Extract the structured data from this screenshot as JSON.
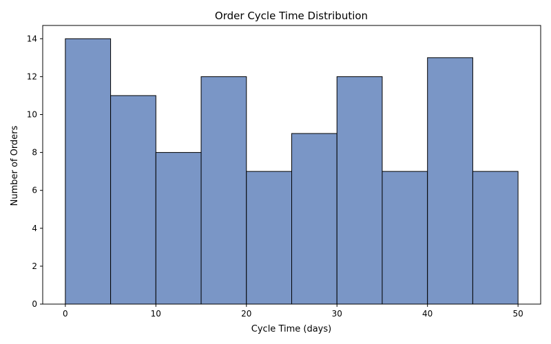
{
  "chart_data": {
    "type": "bar",
    "title": "Order Cycle Time Distribution",
    "xlabel": "Cycle Time (days)",
    "ylabel": "Number of Orders",
    "bins": [
      {
        "start": 0,
        "end": 5,
        "count": 14
      },
      {
        "start": 5,
        "end": 10,
        "count": 11
      },
      {
        "start": 10,
        "end": 15,
        "count": 8
      },
      {
        "start": 15,
        "end": 20,
        "count": 12
      },
      {
        "start": 20,
        "end": 25,
        "count": 7
      },
      {
        "start": 25,
        "end": 30,
        "count": 9
      },
      {
        "start": 30,
        "end": 35,
        "count": 12
      },
      {
        "start": 35,
        "end": 40,
        "count": 7
      },
      {
        "start": 40,
        "end": 45,
        "count": 13
      },
      {
        "start": 45,
        "end": 50,
        "count": 7
      }
    ],
    "xlim": [
      -2.5,
      52.5
    ],
    "ylim": [
      0,
      14.7
    ],
    "xticks": [
      0,
      10,
      20,
      30,
      40,
      50
    ],
    "yticks": [
      0,
      2,
      4,
      6,
      8,
      10,
      12,
      14
    ],
    "grid": false,
    "bar_color": "#7a96c6",
    "edge_color": "#000000"
  }
}
